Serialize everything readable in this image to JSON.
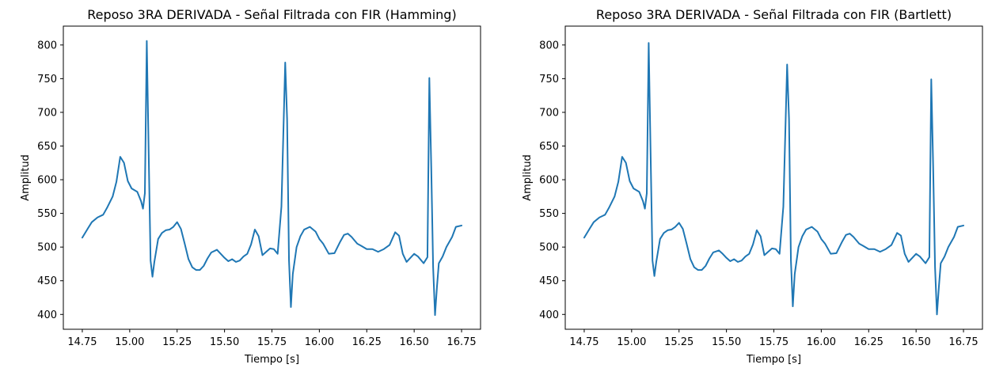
{
  "chart_data": [
    {
      "type": "line",
      "title": "Reposo 3RA DERIVADA - Señal Filtrada con FIR (Hamming)",
      "xlabel": "Tiempo [s]",
      "ylabel": "Amplitud",
      "xlim": [
        14.65,
        16.85
      ],
      "ylim": [
        378,
        828
      ],
      "xticks": [
        "14.75",
        "15.00",
        "15.25",
        "15.50",
        "15.75",
        "16.00",
        "16.25",
        "16.50",
        "16.75"
      ],
      "yticks": [
        "400",
        "450",
        "500",
        "550",
        "600",
        "650",
        "700",
        "750",
        "800"
      ],
      "grid": false,
      "series": [
        {
          "color": "#1f77b4",
          "x": [
            14.75,
            14.78,
            14.8,
            14.83,
            14.86,
            14.88,
            14.91,
            14.93,
            14.95,
            14.97,
            14.99,
            15.01,
            15.04,
            15.06,
            15.07,
            15.08,
            15.09,
            15.1,
            15.11,
            15.12,
            15.13,
            15.15,
            15.17,
            15.19,
            15.21,
            15.23,
            15.25,
            15.27,
            15.29,
            15.31,
            15.33,
            15.35,
            15.37,
            15.39,
            15.41,
            15.43,
            15.46,
            15.48,
            15.5,
            15.52,
            15.54,
            15.56,
            15.58,
            15.6,
            15.62,
            15.64,
            15.66,
            15.68,
            15.7,
            15.72,
            15.74,
            15.76,
            15.78,
            15.8,
            15.82,
            15.83,
            15.84,
            15.85,
            15.86,
            15.87,
            15.88,
            15.9,
            15.92,
            15.95,
            15.98,
            16.0,
            16.02,
            16.05,
            16.08,
            16.11,
            16.13,
            16.15,
            16.17,
            16.2,
            16.22,
            16.25,
            16.28,
            16.31,
            16.34,
            16.37,
            16.4,
            16.42,
            16.44,
            16.46,
            16.48,
            16.5,
            16.52,
            16.55,
            16.57,
            16.58,
            16.59,
            16.6,
            16.61,
            16.62,
            16.63,
            16.65,
            16.67,
            16.7,
            16.72,
            16.75
          ],
          "values": [
            514,
            528,
            537,
            544,
            548,
            558,
            575,
            597,
            634,
            625,
            598,
            587,
            582,
            568,
            557,
            580,
            806,
            640,
            480,
            456,
            478,
            512,
            521,
            525,
            526,
            530,
            537,
            527,
            505,
            482,
            470,
            466,
            466,
            472,
            483,
            492,
            496,
            490,
            484,
            479,
            482,
            478,
            480,
            486,
            490,
            504,
            526,
            516,
            488,
            493,
            498,
            497,
            490,
            560,
            774,
            690,
            480,
            411,
            460,
            480,
            500,
            516,
            526,
            530,
            523,
            512,
            505,
            490,
            491,
            508,
            518,
            520,
            515,
            505,
            502,
            497,
            497,
            493,
            497,
            503,
            522,
            517,
            490,
            478,
            484,
            490,
            486,
            476,
            485,
            751,
            620,
            470,
            399,
            440,
            476,
            486,
            500,
            515,
            530,
            532
          ]
        }
      ]
    },
    {
      "type": "line",
      "title": "Reposo 3RA DERIVADA - Señal Filtrada con FIR (Bartlett)",
      "xlabel": "Tiempo [s]",
      "ylabel": "Amplitud",
      "xlim": [
        14.65,
        16.85
      ],
      "ylim": [
        378,
        828
      ],
      "xticks": [
        "14.75",
        "15.00",
        "15.25",
        "15.50",
        "15.75",
        "16.00",
        "16.25",
        "16.50",
        "16.75"
      ],
      "yticks": [
        "400",
        "450",
        "500",
        "550",
        "600",
        "650",
        "700",
        "750",
        "800"
      ],
      "grid": false,
      "series": [
        {
          "color": "#1f77b4",
          "x": [
            14.75,
            14.78,
            14.8,
            14.83,
            14.86,
            14.88,
            14.91,
            14.93,
            14.95,
            14.97,
            14.99,
            15.01,
            15.04,
            15.06,
            15.07,
            15.08,
            15.09,
            15.1,
            15.11,
            15.12,
            15.13,
            15.15,
            15.17,
            15.19,
            15.21,
            15.23,
            15.25,
            15.27,
            15.29,
            15.31,
            15.33,
            15.35,
            15.37,
            15.39,
            15.41,
            15.43,
            15.46,
            15.48,
            15.5,
            15.52,
            15.54,
            15.56,
            15.58,
            15.6,
            15.62,
            15.64,
            15.66,
            15.68,
            15.7,
            15.72,
            15.74,
            15.76,
            15.78,
            15.8,
            15.82,
            15.83,
            15.84,
            15.85,
            15.86,
            15.87,
            15.88,
            15.9,
            15.92,
            15.95,
            15.98,
            16.0,
            16.02,
            16.05,
            16.08,
            16.11,
            16.13,
            16.15,
            16.17,
            16.2,
            16.22,
            16.25,
            16.28,
            16.31,
            16.34,
            16.37,
            16.4,
            16.42,
            16.44,
            16.46,
            16.48,
            16.5,
            16.52,
            16.55,
            16.57,
            16.58,
            16.59,
            16.6,
            16.61,
            16.62,
            16.63,
            16.65,
            16.67,
            16.7,
            16.72,
            16.75
          ],
          "values": [
            514,
            528,
            537,
            544,
            548,
            558,
            575,
            597,
            634,
            625,
            598,
            587,
            582,
            568,
            557,
            580,
            803,
            640,
            480,
            457,
            478,
            512,
            521,
            525,
            526,
            530,
            536,
            527,
            505,
            482,
            470,
            466,
            466,
            472,
            483,
            492,
            495,
            490,
            484,
            479,
            482,
            478,
            480,
            486,
            490,
            504,
            525,
            516,
            488,
            493,
            498,
            497,
            490,
            560,
            771,
            690,
            480,
            412,
            460,
            480,
            500,
            516,
            526,
            530,
            523,
            512,
            505,
            490,
            491,
            508,
            518,
            520,
            515,
            505,
            502,
            497,
            497,
            493,
            497,
            503,
            521,
            517,
            490,
            478,
            484,
            490,
            486,
            476,
            485,
            749,
            620,
            470,
            400,
            440,
            476,
            486,
            500,
            515,
            530,
            532
          ]
        }
      ]
    }
  ]
}
